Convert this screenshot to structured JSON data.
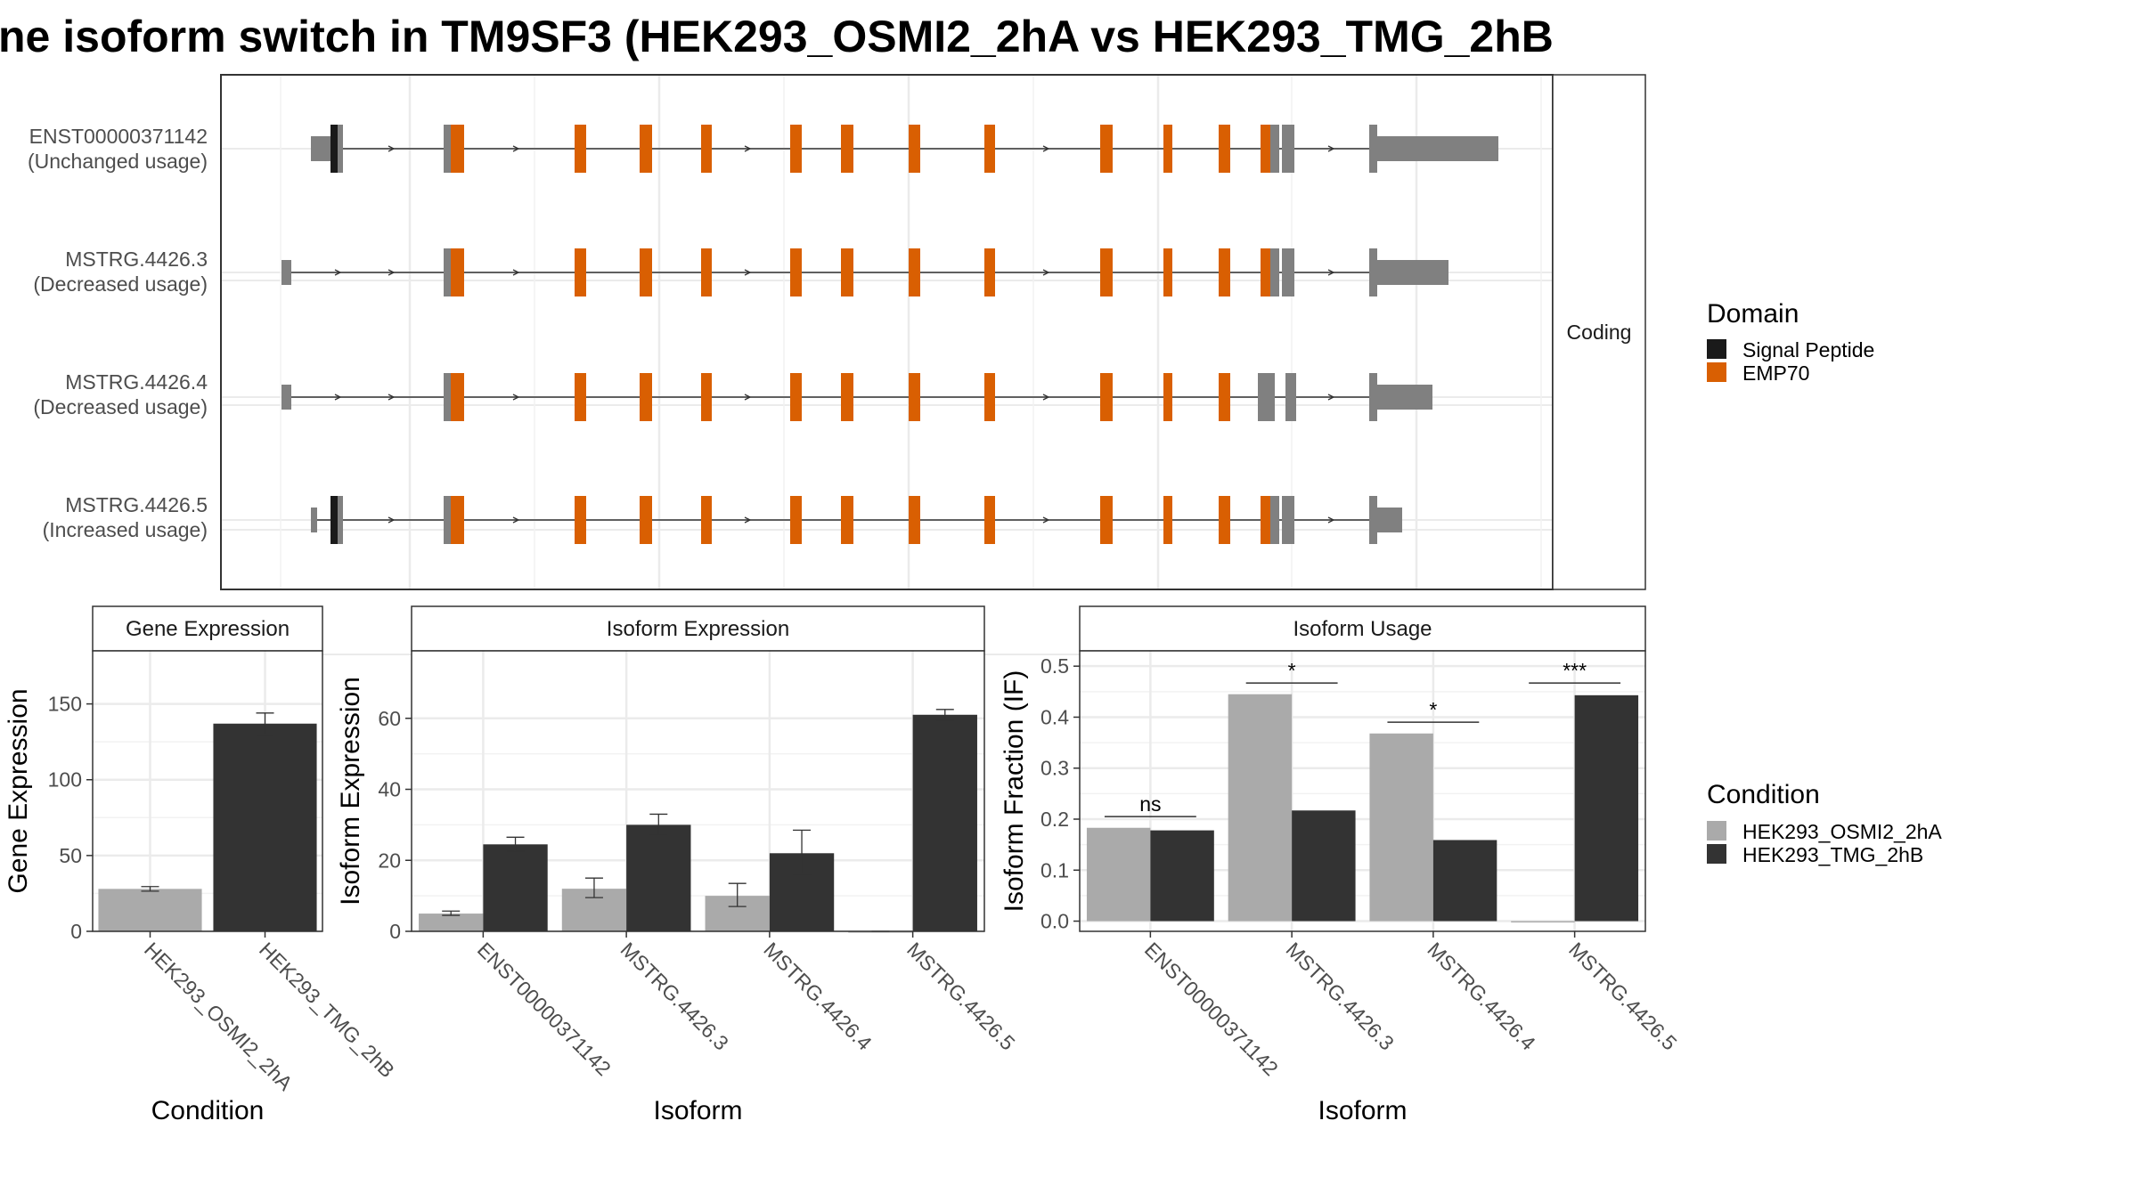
{
  "title": "ne isoform switch in TM9SF3 (HEK293_OSMI2_2hA vs HEK293_TMG_2hB",
  "colors": {
    "orange": "#D95F02",
    "black": "#1a1a1a",
    "grey_exon": "#808080",
    "cond_a": "#AAAAAA",
    "cond_b": "#333333",
    "grid": "#EBEBEB",
    "strip_bg": "#FFFFFF",
    "frame": "#333333"
  },
  "structure_panel": {
    "facet_label": "Coding",
    "transcripts": [
      {
        "id": "ENST00000371142",
        "usage": "(Unchanged usage)"
      },
      {
        "id": "MSTRG.4426.3",
        "usage": "(Decreased usage)"
      },
      {
        "id": "MSTRG.4426.4",
        "usage": "(Decreased usage)"
      },
      {
        "id": "MSTRG.4426.5",
        "usage": "(Increased usage)"
      }
    ]
  },
  "domain_legend": {
    "title": "Domain",
    "items": [
      {
        "label": "Signal Peptide",
        "color": "#1a1a1a"
      },
      {
        "label": "EMP70",
        "color": "#D95F02"
      }
    ]
  },
  "condition_legend": {
    "title": "Condition",
    "items": [
      {
        "label": "HEK293_OSMI2_2hA",
        "color": "#AAAAAA"
      },
      {
        "label": "HEK293_TMG_2hB",
        "color": "#333333"
      }
    ]
  },
  "chart_data": [
    {
      "type": "bar",
      "title": "Gene Expression",
      "xlabel": "Condition",
      "ylabel": "Gene Expression",
      "categories": [
        "HEK293_OSMI2_2hA",
        "HEK293_TMG_2hB"
      ],
      "values": [
        28,
        137
      ],
      "errors": [
        [
          26.5,
          29.5
        ],
        [
          130,
          144
        ]
      ],
      "bar_colors": [
        "#AAAAAA",
        "#333333"
      ],
      "ylim": [
        0,
        185
      ],
      "yticks": [
        0,
        50,
        100,
        150
      ]
    },
    {
      "type": "bar",
      "title": "Isoform Expression",
      "xlabel": "Isoform",
      "ylabel": "Isoform Expression",
      "categories": [
        "ENST00000371142",
        "MSTRG.4426.3",
        "MSTRG.4426.4",
        "MSTRG.4426.5"
      ],
      "series": [
        {
          "name": "HEK293_OSMI2_2hA",
          "values": [
            5,
            12,
            10,
            0
          ],
          "errors": [
            [
              4.5,
              5.7
            ],
            [
              9.5,
              15
            ],
            [
              7,
              13.5
            ],
            [
              0,
              0
            ]
          ]
        },
        {
          "name": "HEK293_TMG_2hB",
          "values": [
            24.5,
            30,
            22,
            61
          ],
          "errors": [
            [
              22.5,
              26.5
            ],
            [
              27,
              33
            ],
            [
              16,
              28.5
            ],
            [
              59.5,
              62.5
            ]
          ]
        }
      ],
      "ylim": [
        0,
        79
      ],
      "yticks": [
        0,
        20,
        40,
        60
      ]
    },
    {
      "type": "bar",
      "title": "Isoform Usage",
      "xlabel": "Isoform",
      "ylabel": "Isoform Fraction (IF)",
      "categories": [
        "ENST00000371142",
        "MSTRG.4426.3",
        "MSTRG.4426.4",
        "MSTRG.4426.5"
      ],
      "series": [
        {
          "name": "HEK293_OSMI2_2hA",
          "values": [
            0.183,
            0.445,
            0.368,
            0
          ]
        },
        {
          "name": "HEK293_TMG_2hB",
          "values": [
            0.178,
            0.217,
            0.159,
            0.443
          ]
        }
      ],
      "significance": [
        {
          "category": "ENST00000371142",
          "label": "ns",
          "y": 0.205
        },
        {
          "category": "MSTRG.4426.3",
          "label": "*",
          "y": 0.467
        },
        {
          "category": "MSTRG.4426.4",
          "label": "*",
          "y": 0.39
        },
        {
          "category": "MSTRG.4426.5",
          "label": "***",
          "y": 0.467
        }
      ],
      "ylim": [
        -0.02,
        0.53
      ],
      "yticks": [
        0.0,
        0.1,
        0.2,
        0.3,
        0.4,
        0.5
      ],
      "ytick_labels": [
        "0.0",
        "0.1",
        "0.2",
        "0.3",
        "0.4",
        "0.5"
      ]
    }
  ]
}
